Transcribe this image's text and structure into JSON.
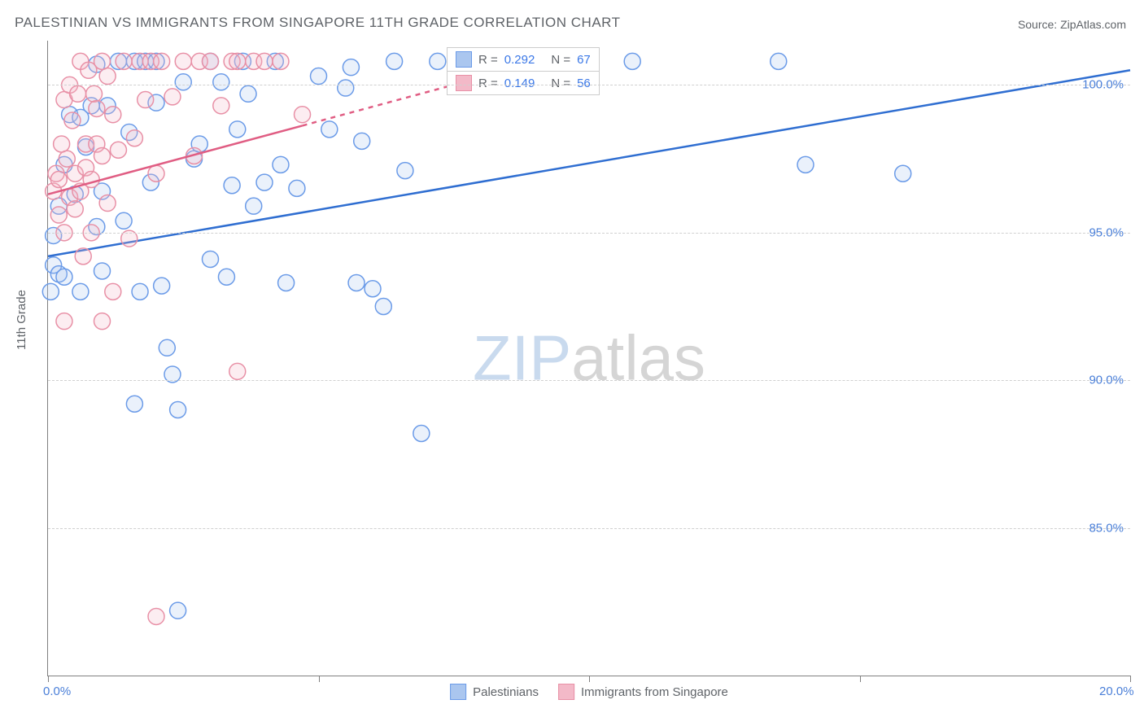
{
  "title": "PALESTINIAN VS IMMIGRANTS FROM SINGAPORE 11TH GRADE CORRELATION CHART",
  "source": "Source: ZipAtlas.com",
  "y_axis_label": "11th Grade",
  "watermark": {
    "zip": "ZIP",
    "atlas": "atlas"
  },
  "chart": {
    "type": "scatter",
    "x_domain": [
      0,
      20
    ],
    "y_domain": [
      80,
      101.5
    ],
    "y_ticks": [
      85.0,
      90.0,
      95.0,
      100.0
    ],
    "y_tick_labels": [
      "85.0%",
      "90.0%",
      "95.0%",
      "100.0%"
    ],
    "x_ticks": [
      0,
      5,
      10,
      15,
      20
    ],
    "x_tick_labels": [
      "0.0%",
      "",
      "",
      "",
      "20.0%"
    ],
    "grid_color": "#d0d0d0",
    "axis_color": "#808080",
    "background_color": "#ffffff",
    "marker_radius": 10,
    "marker_stroke_width": 1.5,
    "marker_fill_opacity": 0.25,
    "series": [
      {
        "name": "Palestinians",
        "color_stroke": "#6b9be8",
        "color_fill": "#aac6ef",
        "r_value": "0.292",
        "n_value": "67",
        "trend": {
          "x1": 0,
          "y1": 94.2,
          "x2": 20,
          "y2": 100.5,
          "solid_until_x": 20,
          "stroke": "#2f6ed1",
          "width": 2.5
        },
        "points": [
          [
            0.1,
            93.9
          ],
          [
            0.1,
            94.9
          ],
          [
            0.2,
            93.6
          ],
          [
            0.2,
            95.9
          ],
          [
            0.3,
            93.5
          ],
          [
            0.3,
            97.3
          ],
          [
            0.4,
            99.0
          ],
          [
            0.5,
            96.3
          ],
          [
            0.6,
            98.9
          ],
          [
            0.6,
            93.0
          ],
          [
            0.7,
            97.9
          ],
          [
            0.8,
            99.3
          ],
          [
            0.9,
            95.2
          ],
          [
            0.9,
            100.7
          ],
          [
            1.0,
            96.4
          ],
          [
            1.0,
            93.7
          ],
          [
            1.1,
            99.3
          ],
          [
            1.3,
            100.8
          ],
          [
            1.4,
            95.4
          ],
          [
            1.5,
            98.4
          ],
          [
            1.6,
            100.8
          ],
          [
            1.6,
            89.2
          ],
          [
            1.7,
            93.0
          ],
          [
            1.8,
            100.8
          ],
          [
            1.9,
            96.7
          ],
          [
            2.0,
            99.4
          ],
          [
            2.0,
            100.8
          ],
          [
            2.1,
            93.2
          ],
          [
            2.2,
            91.1
          ],
          [
            2.3,
            90.2
          ],
          [
            2.4,
            89.0
          ],
          [
            2.5,
            100.1
          ],
          [
            2.7,
            97.5
          ],
          [
            2.8,
            98.0
          ],
          [
            3.0,
            94.1
          ],
          [
            3.0,
            100.8
          ],
          [
            3.2,
            100.1
          ],
          [
            3.3,
            93.5
          ],
          [
            3.4,
            96.6
          ],
          [
            3.5,
            98.5
          ],
          [
            3.6,
            100.8
          ],
          [
            3.7,
            99.7
          ],
          [
            3.8,
            95.9
          ],
          [
            4.0,
            96.7
          ],
          [
            4.2,
            100.8
          ],
          [
            4.3,
            97.3
          ],
          [
            4.4,
            93.3
          ],
          [
            4.6,
            96.5
          ],
          [
            5.0,
            100.3
          ],
          [
            5.2,
            98.5
          ],
          [
            5.5,
            99.9
          ],
          [
            5.6,
            100.6
          ],
          [
            5.7,
            93.3
          ],
          [
            5.8,
            98.1
          ],
          [
            6.0,
            93.1
          ],
          [
            6.2,
            92.5
          ],
          [
            6.4,
            100.8
          ],
          [
            6.6,
            97.1
          ],
          [
            6.9,
            88.2
          ],
          [
            7.2,
            100.8
          ],
          [
            8.0,
            100.8
          ],
          [
            10.8,
            100.8
          ],
          [
            13.5,
            100.8
          ],
          [
            14.0,
            97.3
          ],
          [
            15.8,
            97.0
          ],
          [
            2.4,
            82.2
          ],
          [
            0.05,
            93.0
          ]
        ]
      },
      {
        "name": "Immigrants from Singapore",
        "color_stroke": "#e890a6",
        "color_fill": "#f3b9c8",
        "r_value": "0.149",
        "n_value": "56",
        "trend": {
          "x1": 0,
          "y1": 96.3,
          "x2": 8.5,
          "y2": 100.5,
          "solid_until_x": 4.7,
          "stroke": "#e05d83",
          "width": 2.5
        },
        "points": [
          [
            0.1,
            96.4
          ],
          [
            0.15,
            97.0
          ],
          [
            0.2,
            95.6
          ],
          [
            0.2,
            96.8
          ],
          [
            0.25,
            98.0
          ],
          [
            0.3,
            95.0
          ],
          [
            0.3,
            99.5
          ],
          [
            0.35,
            97.5
          ],
          [
            0.4,
            96.2
          ],
          [
            0.4,
            100.0
          ],
          [
            0.45,
            98.8
          ],
          [
            0.5,
            95.8
          ],
          [
            0.5,
            97.0
          ],
          [
            0.55,
            99.7
          ],
          [
            0.6,
            96.4
          ],
          [
            0.6,
            100.8
          ],
          [
            0.65,
            94.2
          ],
          [
            0.7,
            98.0
          ],
          [
            0.7,
            97.2
          ],
          [
            0.75,
            100.5
          ],
          [
            0.8,
            95.0
          ],
          [
            0.8,
            96.8
          ],
          [
            0.85,
            99.7
          ],
          [
            0.9,
            99.2
          ],
          [
            0.9,
            98.0
          ],
          [
            1.0,
            100.8
          ],
          [
            1.0,
            97.6
          ],
          [
            1.1,
            96.0
          ],
          [
            1.1,
            100.3
          ],
          [
            1.2,
            93.0
          ],
          [
            1.2,
            99.0
          ],
          [
            1.3,
            97.8
          ],
          [
            1.4,
            100.8
          ],
          [
            1.5,
            94.8
          ],
          [
            1.6,
            98.2
          ],
          [
            1.7,
            100.8
          ],
          [
            1.8,
            99.5
          ],
          [
            1.9,
            100.8
          ],
          [
            2.0,
            97.0
          ],
          [
            2.1,
            100.8
          ],
          [
            2.3,
            99.6
          ],
          [
            2.5,
            100.8
          ],
          [
            2.7,
            97.6
          ],
          [
            2.8,
            100.8
          ],
          [
            3.0,
            100.8
          ],
          [
            3.2,
            99.3
          ],
          [
            3.4,
            100.8
          ],
          [
            3.5,
            100.8
          ],
          [
            3.8,
            100.8
          ],
          [
            4.0,
            100.8
          ],
          [
            4.3,
            100.8
          ],
          [
            4.7,
            99.0
          ],
          [
            3.5,
            90.3
          ],
          [
            1.0,
            92.0
          ],
          [
            2.0,
            82.0
          ],
          [
            0.3,
            92.0
          ]
        ]
      }
    ]
  },
  "legend_top": [
    {
      "swatch_fill": "#aac6ef",
      "swatch_stroke": "#6b9be8",
      "r": "0.292",
      "n": "67"
    },
    {
      "swatch_fill": "#f3b9c8",
      "swatch_stroke": "#e890a6",
      "r": "0.149",
      "n": "56"
    }
  ],
  "legend_bottom": [
    {
      "swatch_fill": "#aac6ef",
      "swatch_stroke": "#6b9be8",
      "label": "Palestinians"
    },
    {
      "swatch_fill": "#f3b9c8",
      "swatch_stroke": "#e890a6",
      "label": "Immigrants from Singapore"
    }
  ]
}
